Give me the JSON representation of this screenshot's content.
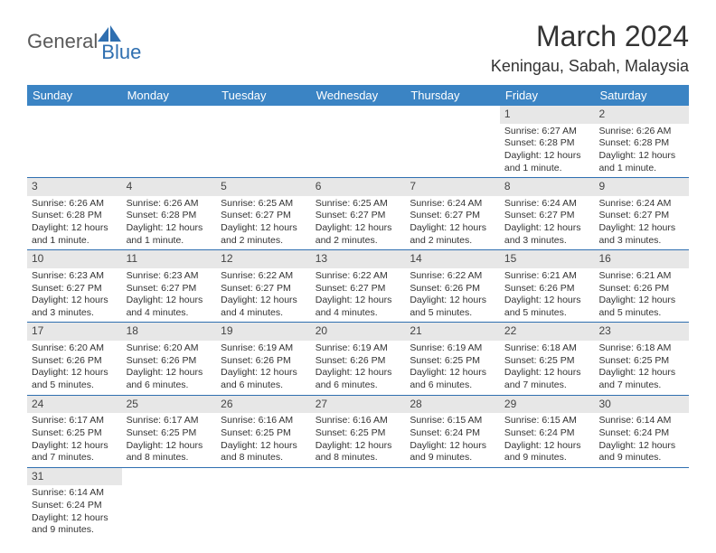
{
  "logo": {
    "text1": "General",
    "text2": "Blue"
  },
  "title": "March 2024",
  "location": "Keningau, Sabah, Malaysia",
  "colors": {
    "header_bg": "#3b84c4",
    "header_text": "#ffffff",
    "daynum_bg": "#e7e7e7",
    "week_border": "#2f6fb0",
    "logo_gray": "#5a5a5a",
    "logo_blue": "#2f6fb0"
  },
  "weekdays": [
    "Sunday",
    "Monday",
    "Tuesday",
    "Wednesday",
    "Thursday",
    "Friday",
    "Saturday"
  ],
  "weeks": [
    [
      null,
      null,
      null,
      null,
      null,
      {
        "day": "1",
        "sunrise": "Sunrise: 6:27 AM",
        "sunset": "Sunset: 6:28 PM",
        "daylight": "Daylight: 12 hours and 1 minute."
      },
      {
        "day": "2",
        "sunrise": "Sunrise: 6:26 AM",
        "sunset": "Sunset: 6:28 PM",
        "daylight": "Daylight: 12 hours and 1 minute."
      }
    ],
    [
      {
        "day": "3",
        "sunrise": "Sunrise: 6:26 AM",
        "sunset": "Sunset: 6:28 PM",
        "daylight": "Daylight: 12 hours and 1 minute."
      },
      {
        "day": "4",
        "sunrise": "Sunrise: 6:26 AM",
        "sunset": "Sunset: 6:28 PM",
        "daylight": "Daylight: 12 hours and 1 minute."
      },
      {
        "day": "5",
        "sunrise": "Sunrise: 6:25 AM",
        "sunset": "Sunset: 6:27 PM",
        "daylight": "Daylight: 12 hours and 2 minutes."
      },
      {
        "day": "6",
        "sunrise": "Sunrise: 6:25 AM",
        "sunset": "Sunset: 6:27 PM",
        "daylight": "Daylight: 12 hours and 2 minutes."
      },
      {
        "day": "7",
        "sunrise": "Sunrise: 6:24 AM",
        "sunset": "Sunset: 6:27 PM",
        "daylight": "Daylight: 12 hours and 2 minutes."
      },
      {
        "day": "8",
        "sunrise": "Sunrise: 6:24 AM",
        "sunset": "Sunset: 6:27 PM",
        "daylight": "Daylight: 12 hours and 3 minutes."
      },
      {
        "day": "9",
        "sunrise": "Sunrise: 6:24 AM",
        "sunset": "Sunset: 6:27 PM",
        "daylight": "Daylight: 12 hours and 3 minutes."
      }
    ],
    [
      {
        "day": "10",
        "sunrise": "Sunrise: 6:23 AM",
        "sunset": "Sunset: 6:27 PM",
        "daylight": "Daylight: 12 hours and 3 minutes."
      },
      {
        "day": "11",
        "sunrise": "Sunrise: 6:23 AM",
        "sunset": "Sunset: 6:27 PM",
        "daylight": "Daylight: 12 hours and 4 minutes."
      },
      {
        "day": "12",
        "sunrise": "Sunrise: 6:22 AM",
        "sunset": "Sunset: 6:27 PM",
        "daylight": "Daylight: 12 hours and 4 minutes."
      },
      {
        "day": "13",
        "sunrise": "Sunrise: 6:22 AM",
        "sunset": "Sunset: 6:27 PM",
        "daylight": "Daylight: 12 hours and 4 minutes."
      },
      {
        "day": "14",
        "sunrise": "Sunrise: 6:22 AM",
        "sunset": "Sunset: 6:26 PM",
        "daylight": "Daylight: 12 hours and 5 minutes."
      },
      {
        "day": "15",
        "sunrise": "Sunrise: 6:21 AM",
        "sunset": "Sunset: 6:26 PM",
        "daylight": "Daylight: 12 hours and 5 minutes."
      },
      {
        "day": "16",
        "sunrise": "Sunrise: 6:21 AM",
        "sunset": "Sunset: 6:26 PM",
        "daylight": "Daylight: 12 hours and 5 minutes."
      }
    ],
    [
      {
        "day": "17",
        "sunrise": "Sunrise: 6:20 AM",
        "sunset": "Sunset: 6:26 PM",
        "daylight": "Daylight: 12 hours and 5 minutes."
      },
      {
        "day": "18",
        "sunrise": "Sunrise: 6:20 AM",
        "sunset": "Sunset: 6:26 PM",
        "daylight": "Daylight: 12 hours and 6 minutes."
      },
      {
        "day": "19",
        "sunrise": "Sunrise: 6:19 AM",
        "sunset": "Sunset: 6:26 PM",
        "daylight": "Daylight: 12 hours and 6 minutes."
      },
      {
        "day": "20",
        "sunrise": "Sunrise: 6:19 AM",
        "sunset": "Sunset: 6:26 PM",
        "daylight": "Daylight: 12 hours and 6 minutes."
      },
      {
        "day": "21",
        "sunrise": "Sunrise: 6:19 AM",
        "sunset": "Sunset: 6:25 PM",
        "daylight": "Daylight: 12 hours and 6 minutes."
      },
      {
        "day": "22",
        "sunrise": "Sunrise: 6:18 AM",
        "sunset": "Sunset: 6:25 PM",
        "daylight": "Daylight: 12 hours and 7 minutes."
      },
      {
        "day": "23",
        "sunrise": "Sunrise: 6:18 AM",
        "sunset": "Sunset: 6:25 PM",
        "daylight": "Daylight: 12 hours and 7 minutes."
      }
    ],
    [
      {
        "day": "24",
        "sunrise": "Sunrise: 6:17 AM",
        "sunset": "Sunset: 6:25 PM",
        "daylight": "Daylight: 12 hours and 7 minutes."
      },
      {
        "day": "25",
        "sunrise": "Sunrise: 6:17 AM",
        "sunset": "Sunset: 6:25 PM",
        "daylight": "Daylight: 12 hours and 8 minutes."
      },
      {
        "day": "26",
        "sunrise": "Sunrise: 6:16 AM",
        "sunset": "Sunset: 6:25 PM",
        "daylight": "Daylight: 12 hours and 8 minutes."
      },
      {
        "day": "27",
        "sunrise": "Sunrise: 6:16 AM",
        "sunset": "Sunset: 6:25 PM",
        "daylight": "Daylight: 12 hours and 8 minutes."
      },
      {
        "day": "28",
        "sunrise": "Sunrise: 6:15 AM",
        "sunset": "Sunset: 6:24 PM",
        "daylight": "Daylight: 12 hours and 9 minutes."
      },
      {
        "day": "29",
        "sunrise": "Sunrise: 6:15 AM",
        "sunset": "Sunset: 6:24 PM",
        "daylight": "Daylight: 12 hours and 9 minutes."
      },
      {
        "day": "30",
        "sunrise": "Sunrise: 6:14 AM",
        "sunset": "Sunset: 6:24 PM",
        "daylight": "Daylight: 12 hours and 9 minutes."
      }
    ],
    [
      {
        "day": "31",
        "sunrise": "Sunrise: 6:14 AM",
        "sunset": "Sunset: 6:24 PM",
        "daylight": "Daylight: 12 hours and 9 minutes."
      },
      null,
      null,
      null,
      null,
      null,
      null
    ]
  ]
}
